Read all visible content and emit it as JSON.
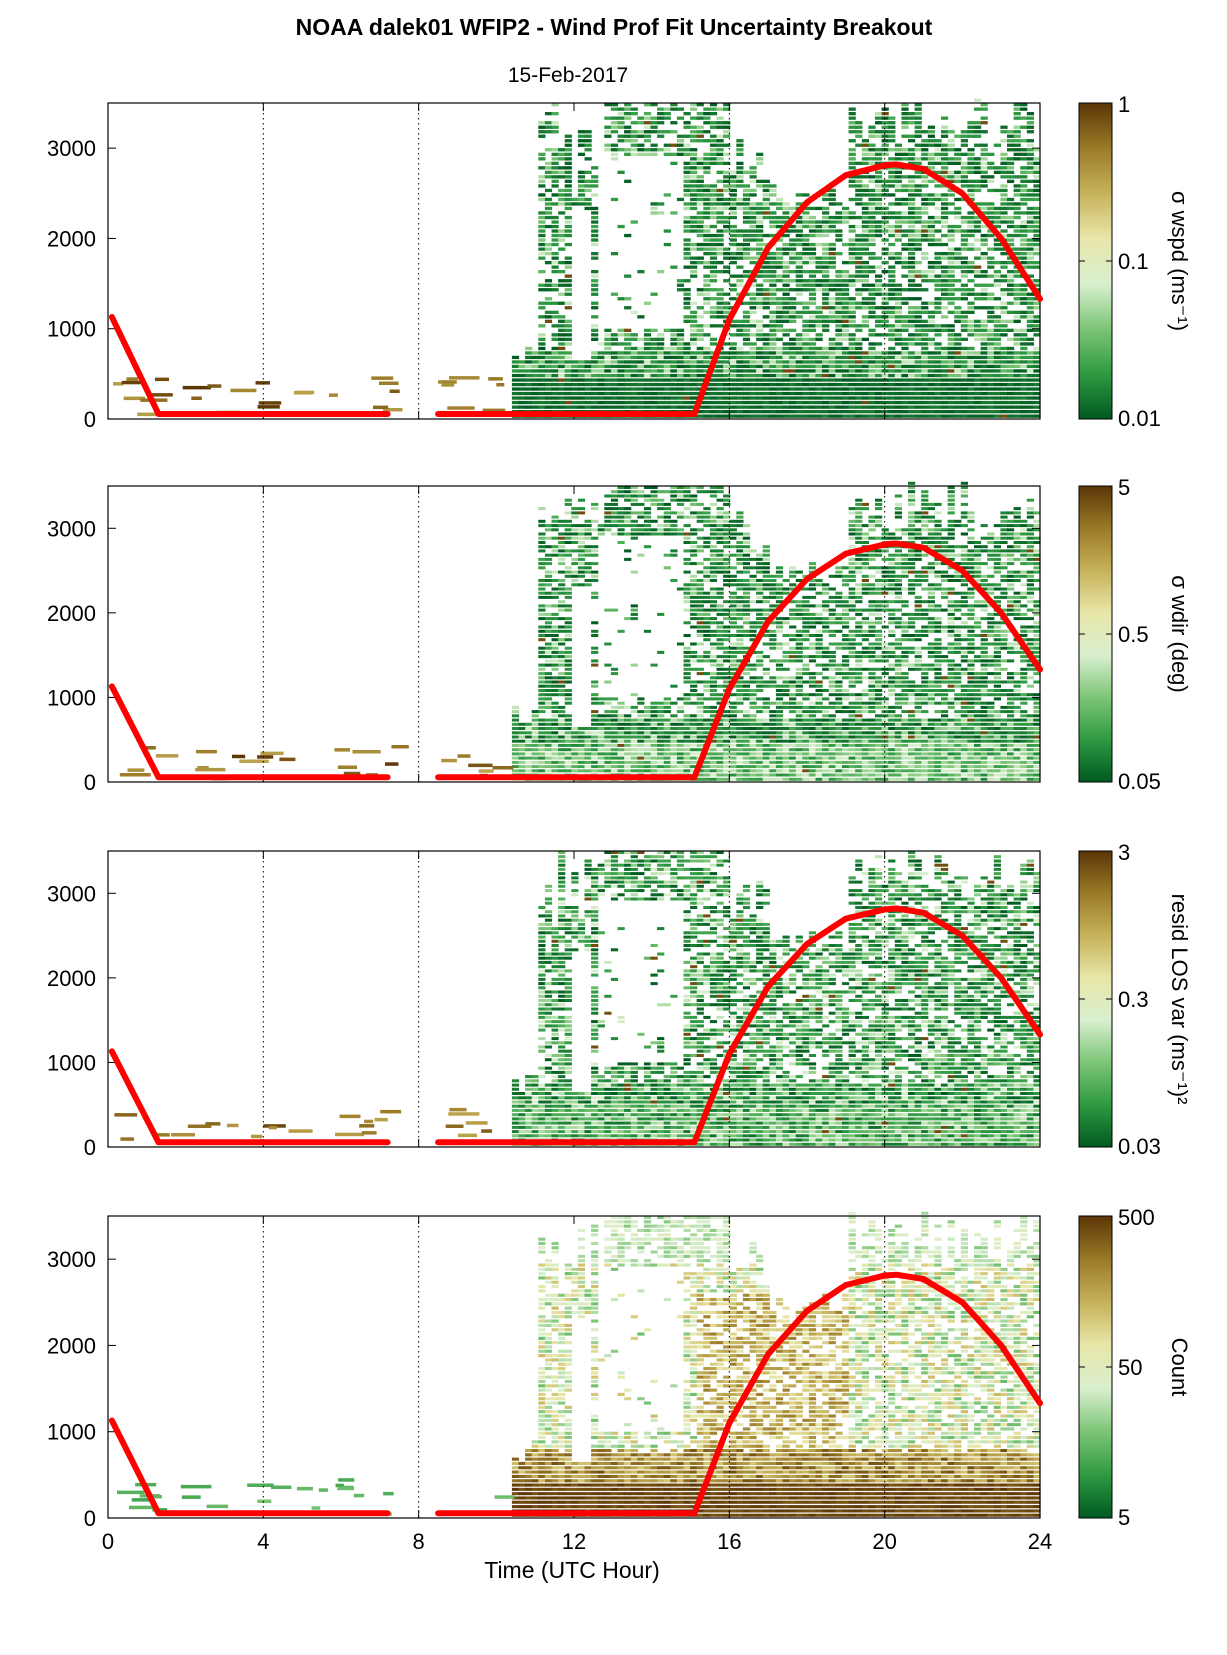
{
  "figure": {
    "title": "NOAA dalek01 WFIP2 - Wind Prof Fit Uncertainty Breakout",
    "subtitle": "15-Feb-2017",
    "xlabel": "Time (UTC Hour)",
    "x_ticks": [
      "0",
      "4",
      "8",
      "12",
      "16",
      "20",
      "24"
    ],
    "y_ticks": [
      "0",
      "1000",
      "2000",
      "3000"
    ]
  },
  "colors": {
    "curve": "#ff0000",
    "colormap": [
      "#005a20",
      "#2f9a42",
      "#7cc576",
      "#d9efcf",
      "#e8e6a8",
      "#c6b25a",
      "#9b7a27",
      "#5c3506"
    ]
  },
  "chart_data": [
    {
      "type": "heatmap",
      "name": "panel-wspd",
      "xlim": [
        0,
        24
      ],
      "ylim": [
        0,
        3500
      ],
      "colorbar": {
        "label": "σ wspd (ms⁻¹)",
        "ticks": [
          "1",
          "0.1",
          "0.01"
        ],
        "scale": "log"
      },
      "curve": {
        "x": [
          0.1,
          1.3,
          7.2,
          8.5,
          15.1,
          16,
          17,
          18,
          19,
          20,
          20.3,
          21,
          22,
          23,
          24
        ],
        "y": [
          1130,
          55,
          55,
          55,
          55,
          1100,
          1900,
          2400,
          2700,
          2810,
          2820,
          2770,
          2500,
          2000,
          1330
        ]
      },
      "style": "sigma"
    },
    {
      "type": "heatmap",
      "name": "panel-wdir",
      "xlim": [
        0,
        24
      ],
      "ylim": [
        0,
        3500
      ],
      "colorbar": {
        "label": "σ wdir (deg)",
        "ticks": [
          "5",
          "0.5",
          "0.05"
        ],
        "scale": "log"
      },
      "curve": {
        "x": [
          0.1,
          1.3,
          7.2,
          8.5,
          15.1,
          16,
          17,
          18,
          19,
          20,
          20.3,
          21,
          22,
          23,
          24
        ],
        "y": [
          1130,
          55,
          55,
          55,
          55,
          1100,
          1900,
          2400,
          2700,
          2810,
          2820,
          2770,
          2500,
          2000,
          1330
        ]
      },
      "style": "sigma"
    },
    {
      "type": "heatmap",
      "name": "panel-resid",
      "xlim": [
        0,
        24
      ],
      "ylim": [
        0,
        3500
      ],
      "colorbar": {
        "label": "resid LOS var (ms⁻¹)²",
        "ticks": [
          "3",
          "0.3",
          "0.03"
        ],
        "scale": "log"
      },
      "curve": {
        "x": [
          0.1,
          1.3,
          7.2,
          8.5,
          15.1,
          16,
          17,
          18,
          19,
          20,
          20.3,
          21,
          22,
          23,
          24
        ],
        "y": [
          1130,
          55,
          55,
          55,
          55,
          1100,
          1900,
          2400,
          2700,
          2810,
          2820,
          2770,
          2500,
          2000,
          1330
        ]
      },
      "style": "resid"
    },
    {
      "type": "heatmap",
      "name": "panel-count",
      "xlim": [
        0,
        24
      ],
      "ylim": [
        0,
        3500
      ],
      "colorbar": {
        "label": "Count",
        "ticks": [
          "500",
          "50",
          "5"
        ],
        "scale": "log"
      },
      "curve": {
        "x": [
          0.1,
          1.3,
          7.2,
          8.5,
          15.1,
          16,
          17,
          18,
          19,
          20,
          20.3,
          21,
          22,
          23,
          24
        ],
        "y": [
          1130,
          55,
          55,
          55,
          55,
          1100,
          1900,
          2400,
          2700,
          2810,
          2820,
          2770,
          2500,
          2000,
          1330
        ]
      },
      "style": "count"
    }
  ]
}
